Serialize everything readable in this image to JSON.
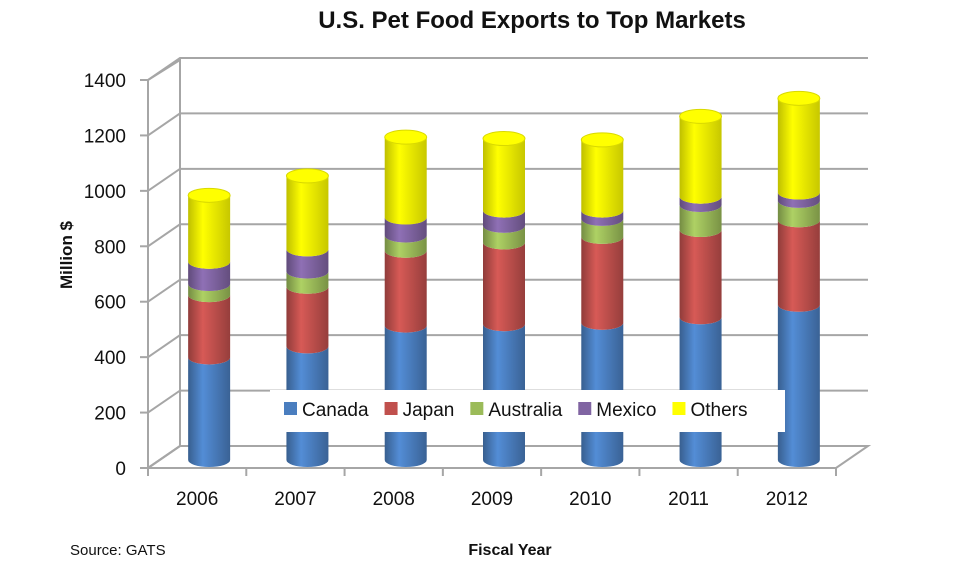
{
  "chart_data": {
    "type": "bar",
    "stacked": true,
    "title": "U.S. Pet Food Exports to Top Markets",
    "xlabel": "Fiscal Year",
    "ylabel": "Million $",
    "ylim": [
      0,
      1400
    ],
    "yticks": [
      0,
      200,
      400,
      600,
      800,
      1000,
      1200,
      1400
    ],
    "grid": true,
    "legend_position": "bottom-center-inside",
    "categories": [
      "2006",
      "2007",
      "2008",
      "2009",
      "2010",
      "2011",
      "2012"
    ],
    "series": [
      {
        "name": "Canada",
        "color": "#4a7ebf",
        "values": [
          370,
          410,
          485,
          490,
          495,
          515,
          560
        ]
      },
      {
        "name": "Japan",
        "color": "#c0504d",
        "values": [
          225,
          215,
          270,
          295,
          310,
          315,
          305
        ]
      },
      {
        "name": "Australia",
        "color": "#9bbb59",
        "values": [
          40,
          55,
          55,
          60,
          65,
          90,
          70
        ]
      },
      {
        "name": "Mexico",
        "color": "#8064a2",
        "values": [
          80,
          80,
          65,
          55,
          30,
          30,
          30
        ]
      },
      {
        "name": "Others",
        "color": "#ffff00",
        "values": [
          240,
          265,
          290,
          260,
          255,
          290,
          340
        ]
      }
    ]
  },
  "source_note": "Source: GATS"
}
